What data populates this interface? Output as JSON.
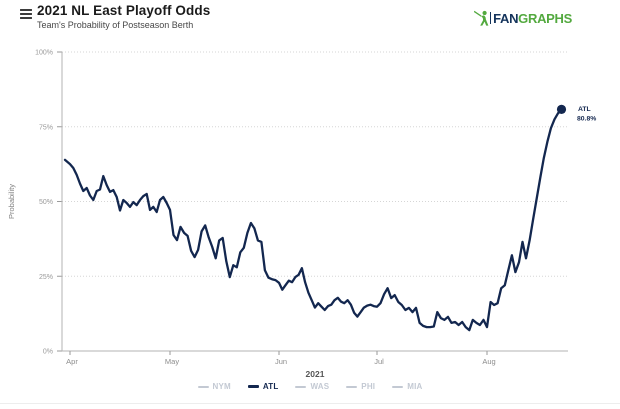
{
  "header": {
    "title": "2021 NL East Playoff Odds",
    "subtitle": "Team's Probability of Postseason Berth",
    "logo": {
      "fan": "FAN",
      "graphs": "GRAPHS",
      "green": "#53a93f",
      "navy": "#15345c"
    }
  },
  "legend": {
    "inactive_color": "#c3c9d3"
  },
  "chart_data": {
    "type": "line",
    "title": "2021 NL East Playoff Odds",
    "subtitle": "Team's Probability of Postseason Berth",
    "xlabel": "2021",
    "ylabel": "Probability",
    "x_tick_labels": [
      "Apr",
      "May",
      "Jun",
      "Jul",
      "Aug"
    ],
    "y_ticks": [
      0,
      25,
      50,
      75,
      100
    ],
    "y_tick_labels": [
      "0%",
      "25%",
      "50%",
      "75%",
      "100%"
    ],
    "ylim": [
      0,
      100
    ],
    "grid": "horizontal-dotted",
    "legend_position": "bottom",
    "x_unit": "days_since_Apr_1_2021",
    "series": [
      {
        "name": "NYM",
        "active": false
      },
      {
        "name": "ATL",
        "active": true,
        "color": "#13274F",
        "end_label": {
          "team": "ATL",
          "value": "80.8%"
        },
        "points": [
          [
            -1.5,
            63.9
          ],
          [
            0,
            62.5
          ],
          [
            1,
            61.2
          ],
          [
            2,
            58.9
          ],
          [
            3,
            56.0
          ],
          [
            4,
            53.5
          ],
          [
            5,
            54.5
          ],
          [
            6,
            52.0
          ],
          [
            7,
            50.5
          ],
          [
            8,
            53.5
          ],
          [
            9,
            54.0
          ],
          [
            10,
            58.5
          ],
          [
            11,
            55.5
          ],
          [
            12,
            53.2
          ],
          [
            13,
            53.8
          ],
          [
            14,
            51.5
          ],
          [
            15,
            47.0
          ],
          [
            16,
            50.5
          ],
          [
            17,
            49.5
          ],
          [
            18,
            48.2
          ],
          [
            19,
            49.8
          ],
          [
            20,
            48.8
          ],
          [
            21,
            50.5
          ],
          [
            22,
            51.8
          ],
          [
            23,
            52.5
          ],
          [
            24,
            47.2
          ],
          [
            25,
            48.2
          ],
          [
            26,
            46.5
          ],
          [
            27,
            50.5
          ],
          [
            28,
            51.5
          ],
          [
            29,
            49.5
          ],
          [
            30,
            47.2
          ],
          [
            31,
            38.8
          ],
          [
            32,
            37.1
          ],
          [
            33,
            41.5
          ],
          [
            34,
            39.5
          ],
          [
            35,
            38.5
          ],
          [
            36,
            33.5
          ],
          [
            37,
            31.4
          ],
          [
            38,
            33.8
          ],
          [
            39,
            40.0
          ],
          [
            40,
            42.0
          ],
          [
            41,
            38.0
          ],
          [
            42,
            34.8
          ],
          [
            43,
            31.0
          ],
          [
            44,
            37.0
          ],
          [
            45,
            37.8
          ],
          [
            46,
            30.0
          ],
          [
            47,
            24.7
          ],
          [
            48,
            28.7
          ],
          [
            49,
            28.0
          ],
          [
            50,
            33.0
          ],
          [
            51,
            34.5
          ],
          [
            52,
            39.5
          ],
          [
            53,
            42.8
          ],
          [
            54,
            41.0
          ],
          [
            55,
            37.0
          ],
          [
            56,
            36.5
          ],
          [
            57,
            27.0
          ],
          [
            58,
            24.5
          ],
          [
            59,
            24.0
          ],
          [
            60,
            23.7
          ],
          [
            61,
            22.8
          ],
          [
            62,
            20.5
          ],
          [
            63,
            22.0
          ],
          [
            64,
            23.5
          ],
          [
            65,
            23.0
          ],
          [
            66,
            24.7
          ],
          [
            67,
            25.5
          ],
          [
            68,
            27.7
          ],
          [
            69,
            23.0
          ],
          [
            70,
            19.5
          ],
          [
            71,
            17.0
          ],
          [
            72,
            14.5
          ],
          [
            73,
            16.0
          ],
          [
            74,
            14.8
          ],
          [
            75,
            13.7
          ],
          [
            76,
            15.0
          ],
          [
            77,
            15.5
          ],
          [
            78,
            17.0
          ],
          [
            79,
            17.8
          ],
          [
            80,
            16.5
          ],
          [
            81,
            16.0
          ],
          [
            82,
            17.0
          ],
          [
            83,
            15.5
          ],
          [
            84,
            12.8
          ],
          [
            85,
            11.5
          ],
          [
            86,
            13.0
          ],
          [
            87,
            14.5
          ],
          [
            88,
            15.2
          ],
          [
            89,
            15.5
          ],
          [
            90,
            15.0
          ],
          [
            91,
            14.8
          ],
          [
            92,
            16.0
          ],
          [
            93,
            19.0
          ],
          [
            94,
            21.0
          ],
          [
            95,
            17.7
          ],
          [
            96,
            18.7
          ],
          [
            97,
            16.4
          ],
          [
            98,
            15.4
          ],
          [
            99,
            13.7
          ],
          [
            100,
            14.4
          ],
          [
            101,
            13.0
          ],
          [
            102,
            14.4
          ],
          [
            103,
            9.4
          ],
          [
            104,
            8.4
          ],
          [
            105,
            8.0
          ],
          [
            106,
            8.0
          ],
          [
            107,
            8.2
          ],
          [
            108,
            13.0
          ],
          [
            109,
            11.0
          ],
          [
            110,
            10.4
          ],
          [
            111,
            11.4
          ],
          [
            112,
            9.4
          ],
          [
            113,
            9.7
          ],
          [
            114,
            8.7
          ],
          [
            115,
            9.7
          ],
          [
            116,
            8.0
          ],
          [
            117,
            7.0
          ],
          [
            118,
            10.4
          ],
          [
            119,
            9.4
          ],
          [
            120,
            8.7
          ],
          [
            121,
            10.4
          ],
          [
            122,
            8.0
          ],
          [
            123,
            16.4
          ],
          [
            124,
            15.4
          ],
          [
            125,
            16.0
          ],
          [
            126,
            21.0
          ],
          [
            127,
            22.0
          ],
          [
            128,
            27.0
          ],
          [
            129,
            32.0
          ],
          [
            130,
            26.4
          ],
          [
            131,
            29.7
          ],
          [
            132,
            36.5
          ],
          [
            133,
            31.0
          ],
          [
            134,
            37.0
          ],
          [
            135,
            44.0
          ],
          [
            136,
            51.0
          ],
          [
            137,
            58.0
          ],
          [
            138,
            64.5
          ],
          [
            139,
            70.0
          ],
          [
            140,
            74.5
          ],
          [
            141,
            77.5
          ],
          [
            142,
            79.5
          ],
          [
            143,
            80.8
          ]
        ]
      },
      {
        "name": "WAS",
        "active": false
      },
      {
        "name": "PHI",
        "active": false
      },
      {
        "name": "MIA",
        "active": false
      }
    ]
  }
}
